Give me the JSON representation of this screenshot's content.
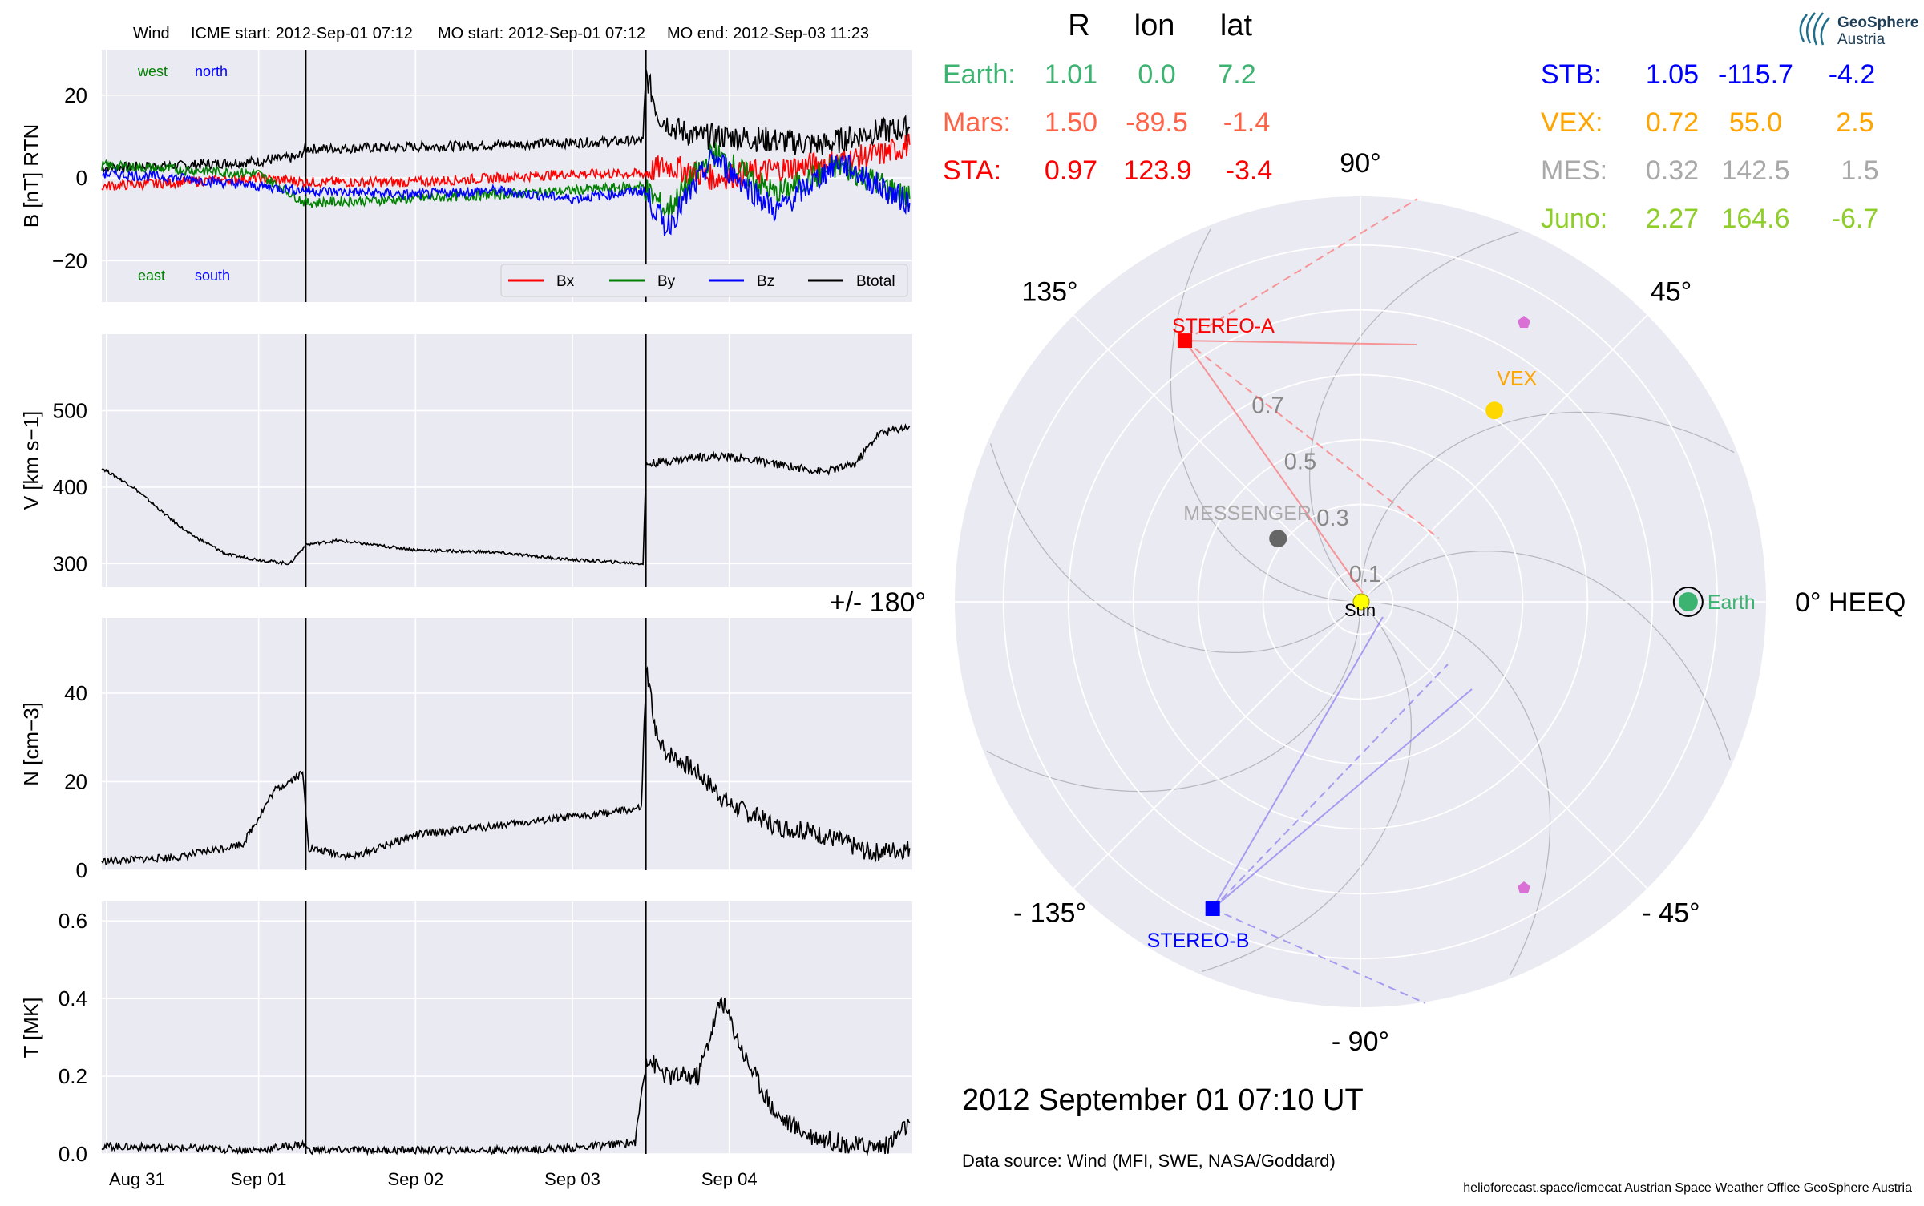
{
  "header": {
    "spacecraft": "Wind",
    "icme_start": "ICME start: 2012-Sep-01 07:12",
    "mo_start": "MO start: 2012-Sep-01 07:12",
    "mo_end": "MO end: 2012-Sep-03 11:23"
  },
  "colors": {
    "panel_bg": "#eaeaf2",
    "grid": "#ffffff",
    "bx": "#ff0000",
    "by": "#008000",
    "bz": "#0000ff",
    "btotal": "#000000",
    "earth": "#3cb371",
    "mars": "#ff6347",
    "sta": "#ff0000",
    "stb": "#0000ff",
    "vex": "#ffa500",
    "mes": "#a9a9a9",
    "juno": "#8fce2a",
    "sun": "#ffff00"
  },
  "chart_data": [
    {
      "id": "b_panel",
      "type": "line",
      "ylabel": "B [nT] RTN",
      "ylim": [
        -30,
        31
      ],
      "yticks": [
        20,
        0,
        -20
      ],
      "ytick_labels": [
        "20",
        "0",
        "−20"
      ],
      "xlim": [
        "2012-08-31 00:00",
        "2012-09-05 04:00"
      ],
      "event_lines": [
        "2012-09-01 07:12",
        "2012-09-03 11:23"
      ],
      "annotations": {
        "west": "west",
        "north": "north",
        "east": "east",
        "south": "south"
      },
      "legend": {
        "position": "lower-right",
        "entries": [
          "Bx",
          "By",
          "Bz",
          "Btotal"
        ]
      },
      "series": [
        {
          "name": "Btotal",
          "x_days": [
            0,
            0.5,
            1.0,
            1.25,
            1.3,
            2.0,
            2.5,
            3.0,
            3.45,
            3.47,
            3.55,
            3.65,
            3.8,
            4.0,
            4.3,
            4.6,
            4.9,
            5.15
          ],
          "values": [
            2.5,
            3,
            4,
            5,
            7,
            7.5,
            8,
            8.5,
            9,
            25,
            15,
            12,
            10,
            10,
            9,
            8,
            11,
            12
          ]
        },
        {
          "name": "Bx",
          "x_days": [
            0,
            0.5,
            1.0,
            1.3,
            2.0,
            2.5,
            3.0,
            3.45,
            3.6,
            3.9,
            4.3,
            4.7,
            5.0,
            5.15
          ],
          "values": [
            -2,
            -1,
            0,
            -1,
            -1,
            0,
            1,
            1,
            3,
            0,
            2,
            4,
            6,
            8
          ]
        },
        {
          "name": "By",
          "x_days": [
            0,
            0.5,
            1.0,
            1.3,
            2.0,
            2.5,
            3.0,
            3.45,
            3.6,
            3.9,
            4.3,
            4.7,
            5.0,
            5.15
          ],
          "values": [
            3,
            2,
            1,
            -6,
            -5,
            -4,
            -3,
            -2,
            -8,
            6,
            -4,
            3,
            -2,
            -5
          ]
        },
        {
          "name": "Bz",
          "x_days": [
            0,
            0.5,
            1.0,
            1.3,
            2.0,
            2.5,
            3.0,
            3.45,
            3.6,
            3.9,
            4.3,
            4.7,
            5.0,
            5.15
          ],
          "values": [
            1,
            0,
            -2,
            -3,
            -4,
            -3,
            -5,
            -3,
            -12,
            5,
            -8,
            4,
            -3,
            -6
          ]
        }
      ]
    },
    {
      "id": "v_panel",
      "type": "line",
      "ylabel": "V [km s−1]",
      "ylim": [
        270,
        600
      ],
      "yticks": [
        300,
        400,
        500
      ],
      "ytick_labels": [
        "300",
        "400",
        "500"
      ],
      "xlim": [
        "2012-08-31 00:00",
        "2012-09-05 04:00"
      ],
      "event_lines": [
        "2012-09-01 07:12",
        "2012-09-03 11:23"
      ],
      "series": [
        {
          "name": "V",
          "x_days": [
            0,
            0.2,
            0.4,
            0.55,
            0.8,
            1.0,
            1.2,
            1.3,
            1.5,
            2.0,
            2.5,
            3.0,
            3.45,
            3.47,
            3.8,
            4.0,
            4.3,
            4.6,
            4.8,
            4.95,
            5.15
          ],
          "values": [
            425,
            400,
            365,
            340,
            312,
            305,
            300,
            325,
            330,
            318,
            315,
            305,
            300,
            430,
            440,
            440,
            430,
            420,
            430,
            470,
            480
          ]
        }
      ]
    },
    {
      "id": "n_panel",
      "type": "line",
      "ylabel": "N [cm−3]",
      "ylim": [
        0,
        57
      ],
      "yticks": [
        0,
        20,
        40
      ],
      "ytick_labels": [
        "0",
        "20",
        "40"
      ],
      "xlim": [
        "2012-08-31 00:00",
        "2012-09-05 04:00"
      ],
      "event_lines": [
        "2012-09-01 07:12",
        "2012-09-03 11:23"
      ],
      "series": [
        {
          "name": "N",
          "x_days": [
            0,
            0.5,
            0.9,
            1.1,
            1.28,
            1.32,
            1.6,
            2.0,
            2.5,
            3.0,
            3.44,
            3.47,
            3.55,
            3.8,
            4.0,
            4.3,
            4.6,
            4.9,
            5.15
          ],
          "values": [
            2,
            3,
            6,
            18,
            22,
            5,
            3,
            8,
            10,
            12,
            14,
            45,
            28,
            22,
            15,
            10,
            8,
            4,
            5
          ]
        }
      ]
    },
    {
      "id": "t_panel",
      "type": "line",
      "ylabel": "T [MK]",
      "ylim": [
        0,
        0.65
      ],
      "yticks": [
        0.0,
        0.2,
        0.4,
        0.6
      ],
      "ytick_labels": [
        "0.0",
        "0.2",
        "0.4",
        "0.6"
      ],
      "xlim": [
        "2012-08-31 00:00",
        "2012-09-05 04:00"
      ],
      "xtick_labels": [
        "Aug 31",
        "Sep 01",
        "Sep 02",
        "Sep 03",
        "Sep 04"
      ],
      "event_lines": [
        "2012-09-01 07:12",
        "2012-09-03 11:23"
      ],
      "series": [
        {
          "name": "T",
          "x_days": [
            0,
            0.5,
            1.0,
            1.28,
            1.32,
            2.0,
            2.5,
            3.0,
            3.4,
            3.47,
            3.6,
            3.8,
            3.95,
            4.1,
            4.3,
            4.5,
            4.8,
            5.0,
            5.15
          ],
          "values": [
            0.02,
            0.015,
            0.01,
            0.025,
            0.01,
            0.01,
            0.01,
            0.015,
            0.03,
            0.25,
            0.2,
            0.2,
            0.4,
            0.25,
            0.1,
            0.05,
            0.02,
            0.02,
            0.08
          ]
        }
      ]
    },
    {
      "id": "polar_map",
      "type": "scatter",
      "angle_labels": [
        "0° HEEQ",
        "45°",
        "90°",
        "135°",
        "+/- 180°",
        "- 135°",
        "- 90°",
        "- 45°"
      ],
      "ring_labels": [
        "0.1",
        "0.3",
        "0.5",
        "0.7"
      ],
      "table_headers": [
        "R",
        "lon",
        "lat"
      ],
      "bodies_left": [
        {
          "name": "Earth:",
          "R": "1.01",
          "lon": "0.0",
          "lat": "7.2"
        },
        {
          "name": "Mars:",
          "R": "1.50",
          "lon": "-89.5",
          "lat": "-1.4"
        },
        {
          "name": "STA:",
          "R": "0.97",
          "lon": "123.9",
          "lat": "-3.4"
        }
      ],
      "bodies_right": [
        {
          "name": "STB:",
          "R": "1.05",
          "lon": "-115.7",
          "lat": "-4.2"
        },
        {
          "name": "VEX:",
          "R": "0.72",
          "lon": "55.0",
          "lat": "2.5"
        },
        {
          "name": "MES:",
          "R": "0.32",
          "lon": "142.5",
          "lat": "1.5"
        },
        {
          "name": "Juno:",
          "R": "2.27",
          "lon": "164.6",
          "lat": "-6.7"
        }
      ],
      "markers": [
        {
          "label": "Earth",
          "r": 1.01,
          "lon": 0.0
        },
        {
          "label": "STEREO-A",
          "r": 0.97,
          "lon": 123.9
        },
        {
          "label": "STEREO-B",
          "r": 1.05,
          "lon": -115.7
        },
        {
          "label": "VEX",
          "r": 0.72,
          "lon": 55.0
        },
        {
          "label": "MESSENGER",
          "r": 0.32,
          "lon": 142.5
        },
        {
          "label": "Sun",
          "r": 0,
          "lon": 0
        }
      ]
    }
  ],
  "footer": {
    "date": "2012 September 01  07:10 UT",
    "source": "Data source: Wind (MFI, SWE, NASA/Goddard)",
    "credits": "helioforecast.space/icmecat   Austrian Space Weather Office   GeoSphere Austria"
  },
  "logo": {
    "line1": "GeoSphere",
    "line2": "Austria"
  }
}
